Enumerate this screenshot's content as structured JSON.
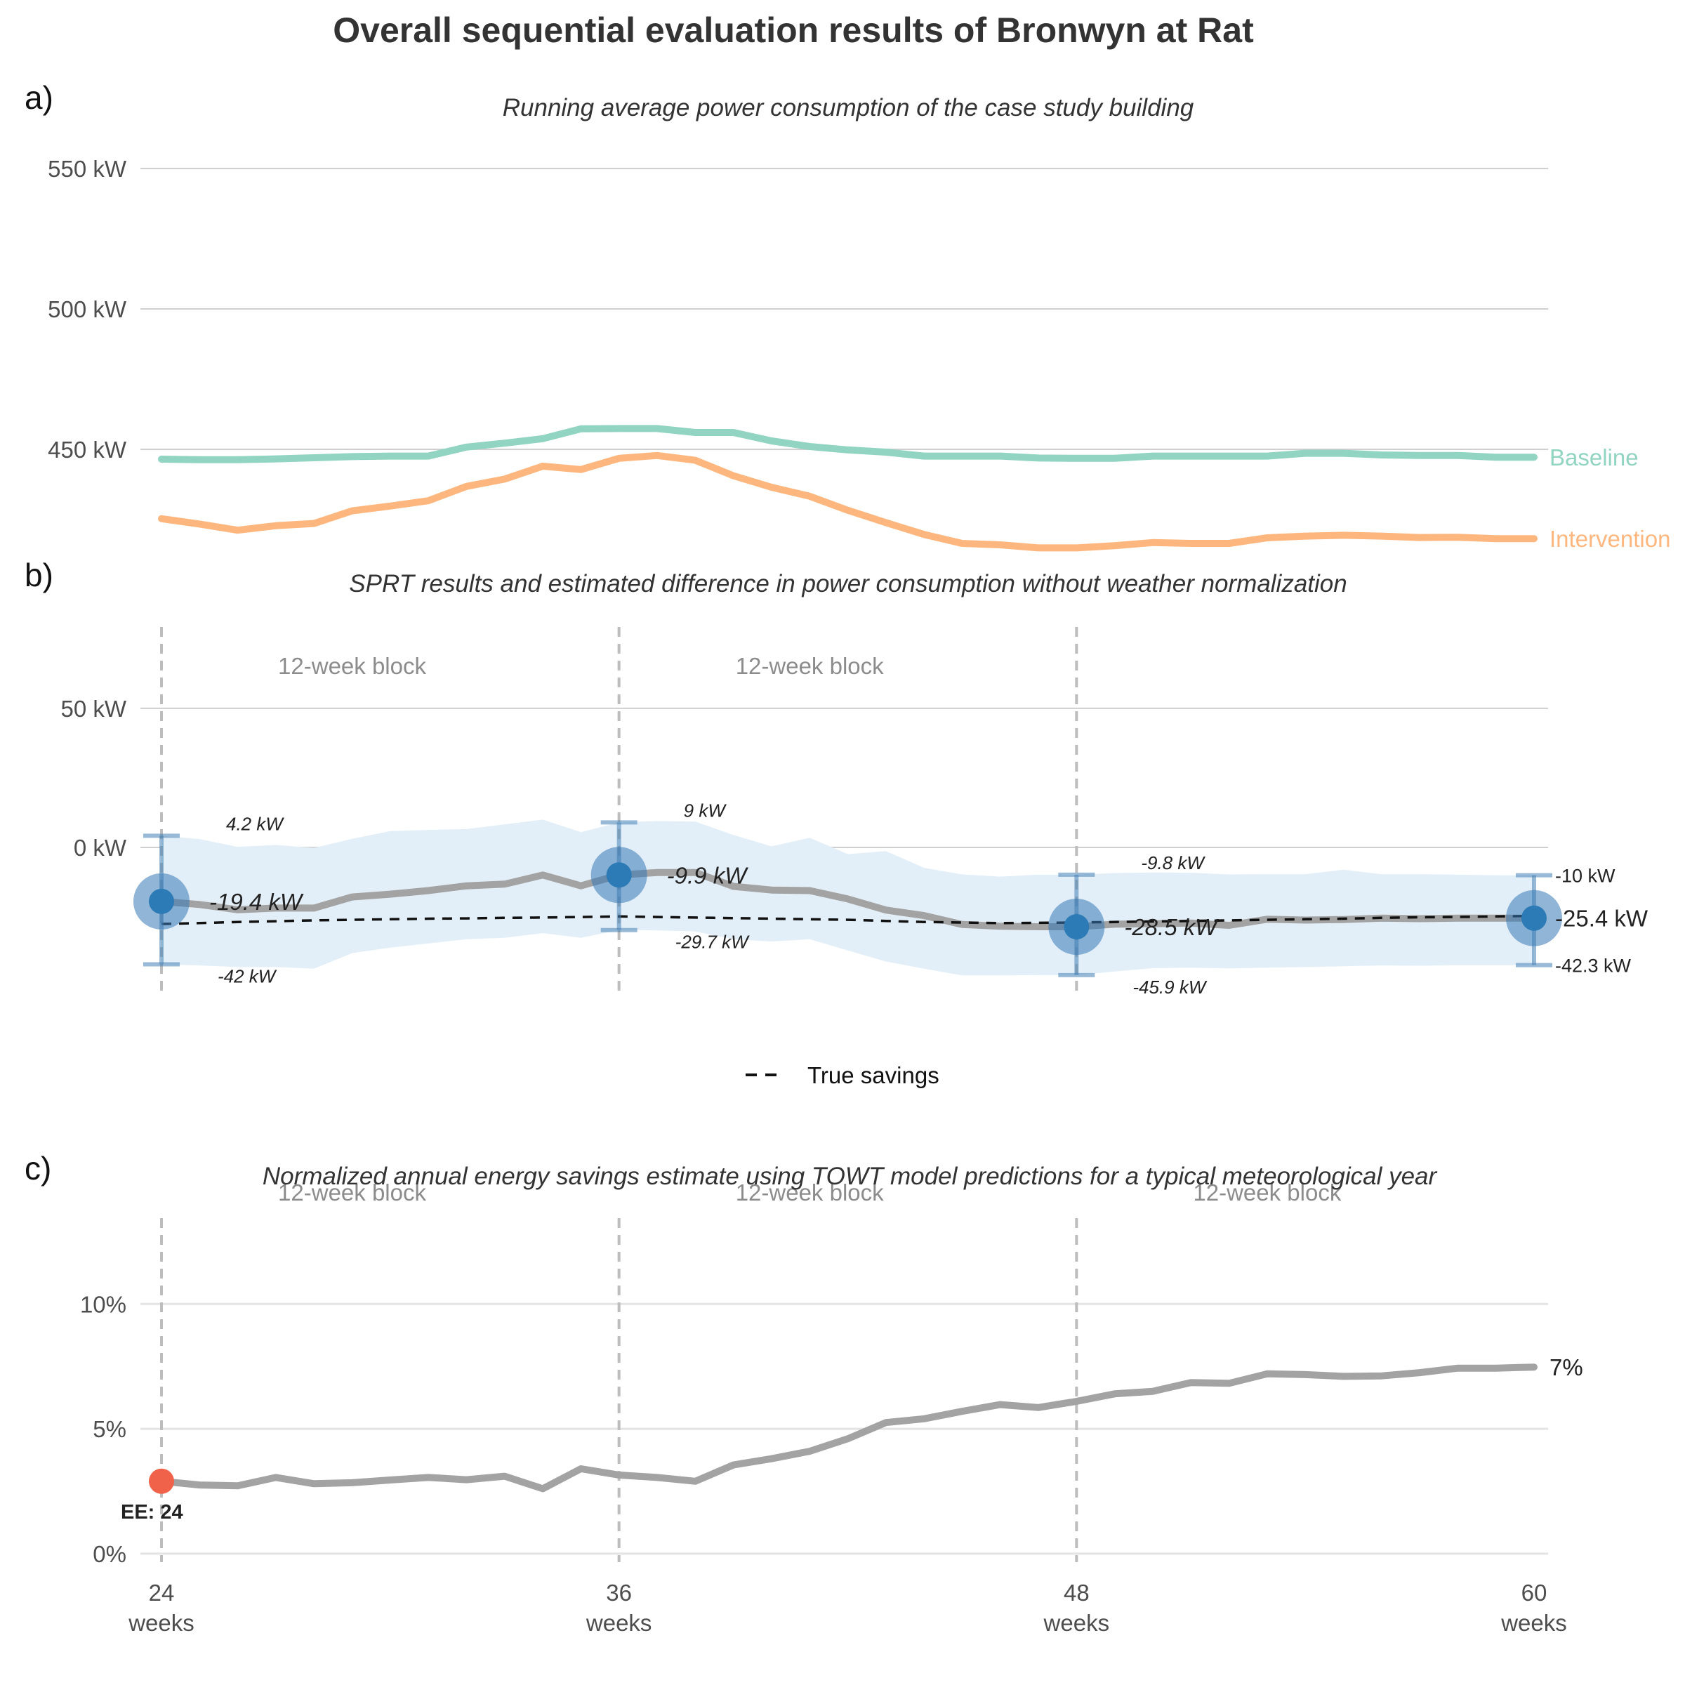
{
  "title": "Overall sequential evaluation results of Bronwyn at Rat",
  "chart_data": [
    {
      "panel": "a)",
      "type": "line",
      "subtitle": "Running average power consumption of the case study building",
      "x": [
        24,
        25,
        26,
        27,
        28,
        29,
        30,
        31,
        32,
        33,
        34,
        35,
        36,
        37,
        38,
        39,
        40,
        41,
        42,
        43,
        44,
        45,
        46,
        47,
        48,
        49,
        50,
        51,
        52,
        53,
        54,
        55,
        56,
        57,
        58,
        59,
        60
      ],
      "ylim": [
        420,
        560
      ],
      "yticks": [
        {
          "value": 450,
          "label": "450 kW"
        },
        {
          "value": 500,
          "label": "500 kW"
        },
        {
          "value": 550,
          "label": "550 kW"
        }
      ],
      "grid": true,
      "series": [
        {
          "name": "Baseline",
          "color": "#91d4c1",
          "values": [
            446.5,
            446.3,
            446.3,
            446.6,
            447,
            447.4,
            447.6,
            447.6,
            450.8,
            452.2,
            453.8,
            457.3,
            457.4,
            457.4,
            456,
            456,
            453,
            451,
            449.8,
            449,
            447.6,
            447.6,
            447.6,
            446.9,
            446.8,
            446.8,
            447.6,
            447.6,
            447.6,
            447.6,
            448.6,
            448.6,
            448,
            447.8,
            447.8,
            447.2,
            447.2
          ]
        },
        {
          "name": "Intervention",
          "color": "#fdb77e",
          "values": [
            425.3,
            423.4,
            421.2,
            422.8,
            423.6,
            428.1,
            429.8,
            431.7,
            436.8,
            439.4,
            444,
            442.8,
            446.8,
            447.8,
            446.1,
            440.6,
            436.5,
            433.3,
            428.3,
            423.9,
            419.7,
            416.5,
            416,
            414.9,
            414.9,
            415.7,
            416.8,
            416.5,
            416.5,
            418.5,
            419.1,
            419.4,
            419.1,
            418.6,
            418.7,
            418.2,
            418.2
          ]
        }
      ]
    },
    {
      "panel": "b)",
      "type": "line",
      "subtitle": "SPRT results and estimated difference in power consumption without weather normalization",
      "x": [
        24,
        25,
        26,
        27,
        28,
        29,
        30,
        31,
        32,
        33,
        34,
        35,
        36,
        37,
        38,
        39,
        40,
        41,
        42,
        43,
        44,
        45,
        46,
        47,
        48,
        49,
        50,
        51,
        52,
        53,
        54,
        55,
        56,
        57,
        58,
        59,
        60
      ],
      "ylim": [
        -55,
        80
      ],
      "yticks": [
        {
          "value": 0,
          "label": "0 kW"
        },
        {
          "value": 50,
          "label": "50 kW"
        }
      ],
      "grid": true,
      "estimate": {
        "color": "#a3a3a3",
        "values": [
          -19.4,
          -20.5,
          -22.4,
          -21.8,
          -21.8,
          -17.8,
          -16.8,
          -15.5,
          -13.8,
          -13.2,
          -9.9,
          -13.8,
          -9.9,
          -9.0,
          -9.0,
          -14.0,
          -15.3,
          -15.5,
          -18.5,
          -22.5,
          -24.5,
          -27.7,
          -28.3,
          -28.5,
          -28.5,
          -27.6,
          -27.4,
          -27.2,
          -28.0,
          -25.8,
          -26.1,
          -25.9,
          -25.4,
          -25.6,
          -25.4,
          -25.4,
          -25.4
        ]
      },
      "interval": {
        "color": "#e3eff8",
        "upper": [
          4.2,
          3.0,
          0.2,
          0.9,
          -0.2,
          3.1,
          5.9,
          6.3,
          6.6,
          8.3,
          10.0,
          5.5,
          9.0,
          9.5,
          9.3,
          4.5,
          0.4,
          3.5,
          -2.4,
          -1.3,
          -7.3,
          -9.7,
          -10.5,
          -9.8,
          -9.8,
          -9.2,
          -9.0,
          -9.1,
          -9.7,
          -9.6,
          -9.6,
          -8.0,
          -9.6,
          -9.6,
          -9.8,
          -10.0,
          -10.0
        ],
        "lower": [
          -42.0,
          -42.4,
          -43.0,
          -43.0,
          -43.6,
          -38.0,
          -36.0,
          -34.5,
          -33.0,
          -32.5,
          -30.8,
          -32.5,
          -29.7,
          -29.8,
          -30.2,
          -33.0,
          -33.8,
          -33.0,
          -37.0,
          -41.0,
          -43.6,
          -46.0,
          -46.0,
          -45.9,
          -45.9,
          -44.6,
          -43.4,
          -43.2,
          -43.5,
          -43.2,
          -43.0,
          -42.7,
          -42.4,
          -42.5,
          -42.3,
          -42.3,
          -42.3
        ]
      },
      "true_savings": {
        "name": "True savings",
        "color": "#111111",
        "values": [
          -27.5,
          -27.2,
          -26.8,
          -26.5,
          -26.2,
          -26.0,
          -25.8,
          -25.6,
          -25.5,
          -25.3,
          -25.2,
          -25.0,
          -24.8,
          -25.0,
          -25.2,
          -25.4,
          -25.6,
          -25.8,
          -26.0,
          -26.4,
          -26.8,
          -27.0,
          -27.2,
          -27.1,
          -27.0,
          -26.8,
          -26.6,
          -26.4,
          -26.2,
          -26.0,
          -25.8,
          -25.6,
          -25.3,
          -25.1,
          -25.0,
          -24.8,
          -24.6
        ]
      },
      "block_lines": [
        24,
        36,
        48
      ],
      "block_labels": [
        {
          "x": 29,
          "text": "12-week block"
        },
        {
          "x": 41,
          "text": "12-week block"
        }
      ],
      "checkpoints": [
        {
          "x": 24,
          "estimate": -19.4,
          "upper": 4.2,
          "lower": -42.0,
          "estimate_label": "-19.4 kW",
          "upper_label": "4.2 kW",
          "lower_label": "-42 kW"
        },
        {
          "x": 36,
          "estimate": -9.9,
          "upper": 9.0,
          "lower": -29.7,
          "estimate_label": "-9.9 kW",
          "upper_label": "9 kW",
          "lower_label": "-29.7 kW"
        },
        {
          "x": 48,
          "estimate": -28.5,
          "upper": -9.8,
          "lower": -45.9,
          "estimate_label": "-28.5 kW",
          "upper_label": "-9.8 kW",
          "lower_label": "-45.9 kW"
        },
        {
          "x": 60,
          "estimate": -25.4,
          "upper": -10.0,
          "lower": -42.3,
          "estimate_label": "-25.4 kW",
          "upper_label": "-10 kW",
          "lower_label": "-42.3 kW"
        }
      ],
      "legend": {
        "position": "bottom",
        "entries": [
          {
            "name": "True savings",
            "style": "dashed"
          }
        ]
      }
    },
    {
      "panel": "c)",
      "type": "line",
      "subtitle": "Normalized annual energy savings estimate using TOWT model predictions for a typical meteorological year",
      "x": [
        24,
        25,
        26,
        27,
        28,
        29,
        30,
        31,
        32,
        33,
        34,
        35,
        36,
        37,
        38,
        39,
        40,
        41,
        42,
        43,
        44,
        45,
        46,
        47,
        48,
        49,
        50,
        51,
        52,
        53,
        54,
        55,
        56,
        57,
        58,
        59,
        60
      ],
      "ylim": [
        -0.2,
        14
      ],
      "yticks": [
        {
          "value": 0,
          "label": "0%"
        },
        {
          "value": 5,
          "label": "5%"
        },
        {
          "value": 10,
          "label": "10%"
        }
      ],
      "xticks": [
        {
          "value": 24,
          "label": "24",
          "sub": "weeks"
        },
        {
          "value": 36,
          "label": "36",
          "sub": "weeks"
        },
        {
          "value": 48,
          "label": "48",
          "sub": "weeks"
        },
        {
          "value": 60,
          "label": "60",
          "sub": "weeks"
        }
      ],
      "grid": true,
      "series": [
        {
          "name": "",
          "color": "#a3a3a3",
          "values": [
            2.9,
            2.75,
            2.72,
            3.05,
            2.8,
            2.84,
            2.95,
            3.05,
            2.96,
            3.1,
            2.6,
            3.4,
            3.15,
            3.05,
            2.9,
            3.55,
            3.8,
            4.1,
            4.6,
            5.25,
            5.4,
            5.7,
            5.97,
            5.85,
            6.1,
            6.4,
            6.5,
            6.85,
            6.82,
            7.2,
            7.17,
            7.1,
            7.12,
            7.25,
            7.43,
            7.43,
            7.47
          ]
        }
      ],
      "end_label": "7%",
      "block_lines": [
        24,
        36,
        48
      ],
      "block_labels": [
        {
          "x": 29,
          "text": "12-week block"
        },
        {
          "x": 41,
          "text": "12-week block"
        },
        {
          "x": 53,
          "text": "12-week block"
        }
      ],
      "early_estimate": {
        "x": 24,
        "value": 2.9,
        "label": "EE: 24",
        "color": "#f0634a"
      }
    }
  ]
}
